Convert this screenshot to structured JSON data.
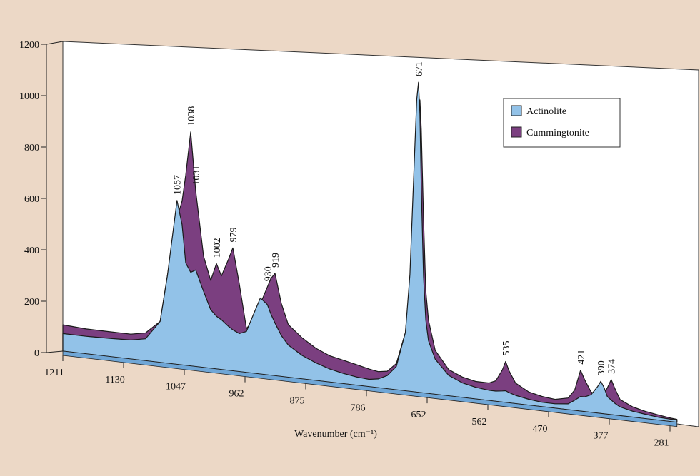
{
  "chart_data": {
    "type": "area",
    "x_label": "Wavenumber (cm⁻¹)",
    "x": [
      1211,
      1180,
      1150,
      1120,
      1100,
      1080,
      1070,
      1057,
      1050,
      1045,
      1038,
      1031,
      1020,
      1010,
      1002,
      995,
      985,
      979,
      970,
      960,
      950,
      940,
      930,
      925,
      919,
      910,
      900,
      880,
      860,
      840,
      820,
      800,
      780,
      760,
      740,
      720,
      700,
      690,
      680,
      675,
      671,
      668,
      665,
      660,
      655,
      650,
      640,
      620,
      600,
      580,
      560,
      550,
      540,
      535,
      530,
      520,
      500,
      480,
      460,
      440,
      430,
      421,
      415,
      405,
      395,
      390,
      385,
      380,
      374,
      368,
      360,
      340,
      320,
      300,
      280,
      270
    ],
    "series": [
      {
        "name": "Actinolite",
        "color": "#92c2e8",
        "values": [
          60,
          60,
          62,
          65,
          75,
          140,
          300,
          560,
          480,
          350,
          320,
          330,
          260,
          200,
          180,
          170,
          150,
          140,
          130,
          140,
          200,
          260,
          240,
          210,
          180,
          140,
          110,
          80,
          60,
          45,
          35,
          28,
          25,
          30,
          45,
          80,
          200,
          400,
          800,
          1000,
          1060,
          950,
          700,
          400,
          250,
          180,
          120,
          70,
          50,
          40,
          35,
          35,
          38,
          40,
          35,
          28,
          20,
          15,
          15,
          20,
          35,
          50,
          50,
          60,
          90,
          110,
          90,
          60,
          50,
          40,
          30,
          20,
          15,
          10,
          8,
          8
        ]
      },
      {
        "name": "Cummingtonite",
        "color": "#7b3f80",
        "values": [
          90,
          85,
          85,
          85,
          95,
          140,
          300,
          500,
          560,
          650,
          800,
          600,
          380,
          300,
          360,
          320,
          380,
          420,
          300,
          150,
          180,
          240,
          300,
          330,
          350,
          250,
          180,
          140,
          110,
          90,
          80,
          70,
          60,
          55,
          60,
          90,
          200,
          380,
          750,
          900,
          950,
          1000,
          900,
          600,
          350,
          250,
          150,
          90,
          70,
          60,
          60,
          70,
          110,
          140,
          110,
          70,
          45,
          35,
          30,
          40,
          70,
          140,
          110,
          70,
          60,
          65,
          70,
          90,
          120,
          90,
          55,
          35,
          25,
          18,
          12,
          10
        ]
      }
    ],
    "peak_labels": [
      1057,
      1038,
      1031,
      1002,
      979,
      930,
      919,
      671,
      535,
      421,
      390,
      374
    ],
    "xlim": [
      1211,
      270
    ],
    "xticks": [
      1211,
      1130,
      1047,
      962,
      875,
      786,
      652,
      562,
      470,
      377,
      281
    ],
    "ylim": [
      0,
      1200
    ],
    "yticks": [
      0,
      200,
      400,
      600,
      800,
      1000,
      1200
    ],
    "legend": "upper-right"
  }
}
